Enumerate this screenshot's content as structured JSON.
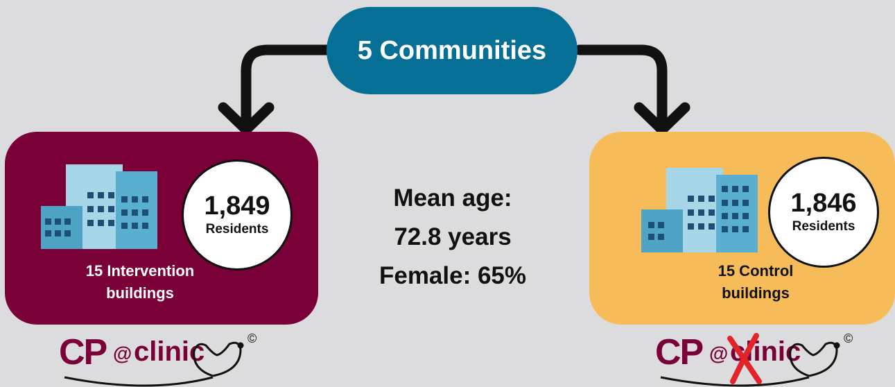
{
  "top": {
    "label": "5 Communities"
  },
  "left_group": {
    "count": "1,849",
    "count_label": "Residents",
    "caption": "15 Intervention\nbuildings"
  },
  "right_group": {
    "count": "1,846",
    "count_label": "Residents",
    "caption": "15 Control\nbuildings"
  },
  "stats": {
    "line1": "Mean age:",
    "line2": "72.8 years",
    "line3": "Female: 65%"
  },
  "logo": {
    "cp": "CP",
    "at": "@",
    "clinic": "clinic",
    "copyright": "©"
  },
  "colors": {
    "pill": "#066f95",
    "intervention": "#7a0038",
    "control": "#f7bc5a",
    "background": "#dcdcde",
    "cross": "#e0242a"
  }
}
